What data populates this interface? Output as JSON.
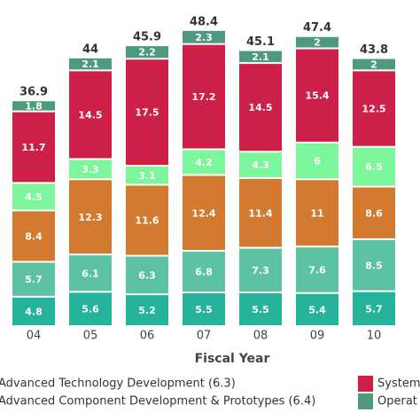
{
  "chart_data": {
    "type": "stacked-bar",
    "x_label": "Fiscal Year",
    "categories": [
      "04",
      "05",
      "06",
      "07",
      "08",
      "09",
      "10"
    ],
    "ylim": [
      0,
      53.3
    ],
    "totals": [
      36.9,
      44,
      45.9,
      48.4,
      45.1,
      47.4,
      43.8
    ],
    "series": [
      {
        "color": "#25b39c",
        "values": [
          4.8,
          5.6,
          5.2,
          5.5,
          5.5,
          5.4,
          5.7
        ]
      },
      {
        "color": "#5cc2a3",
        "values": [
          5.7,
          6.1,
          6.3,
          6.8,
          7.3,
          7.6,
          8.5
        ]
      },
      {
        "name": "Advanced Technology Development (6.3)",
        "color": "#d27a30",
        "values": [
          8.4,
          12.3,
          11.6,
          12.4,
          11.4,
          11,
          8.6
        ]
      },
      {
        "name": "Advanced Component Development & Prototypes (6.4)",
        "color": "#7df59a",
        "values": [
          4.5,
          3.3,
          3.1,
          4.2,
          4.3,
          6,
          6.5
        ]
      },
      {
        "name": "System",
        "color": "#cc2049",
        "values": [
          11.7,
          14.5,
          17.5,
          17.2,
          14.5,
          15.4,
          12.5
        ]
      },
      {
        "name": "Operat",
        "color": "#4e9a7e",
        "values": [
          1.8,
          2.1,
          2.2,
          2.3,
          2.1,
          2,
          2
        ]
      }
    ]
  }
}
